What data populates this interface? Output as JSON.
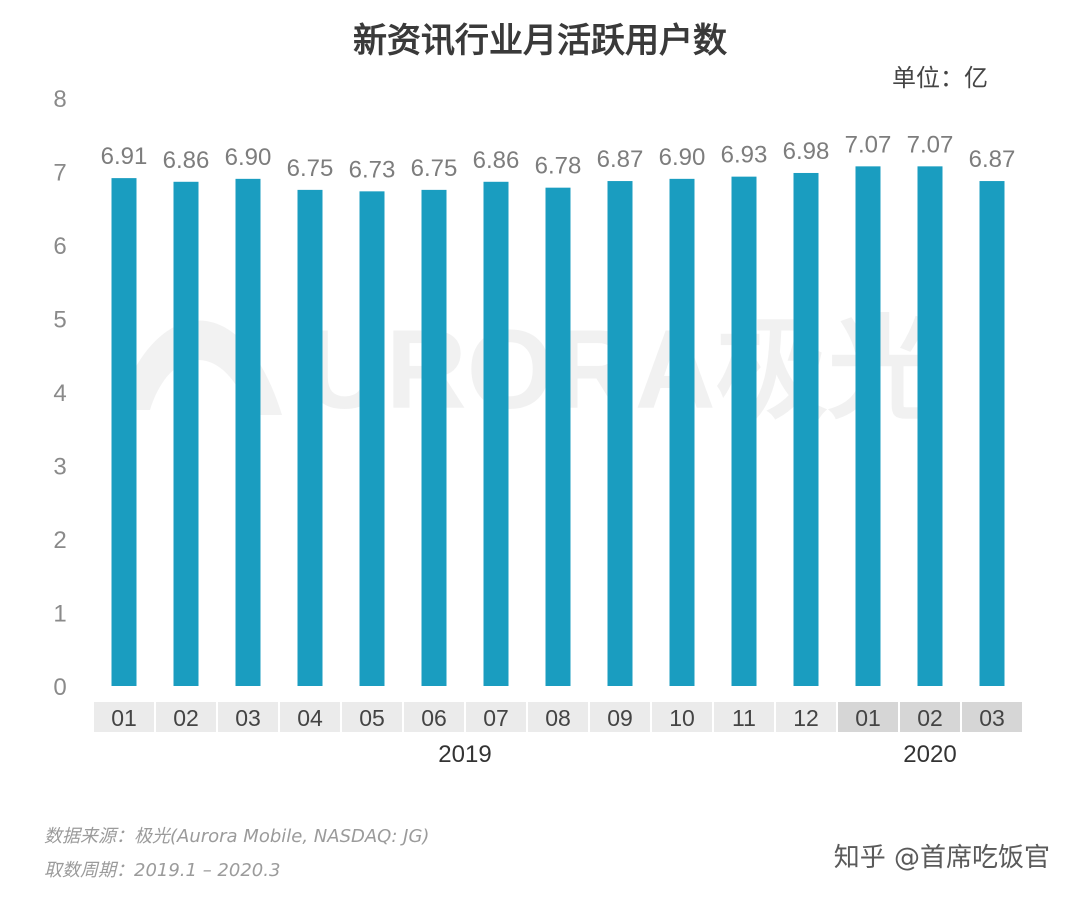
{
  "chart_data": {
    "type": "bar",
    "title": "新资讯行业月活跃用户数",
    "unit_label": "单位：亿",
    "categories": [
      "01",
      "02",
      "03",
      "04",
      "05",
      "06",
      "07",
      "08",
      "09",
      "10",
      "11",
      "12",
      "01",
      "02",
      "03"
    ],
    "years": [
      {
        "label": "2019",
        "start": 0,
        "end": 11
      },
      {
        "label": "2020",
        "start": 12,
        "end": 14
      }
    ],
    "values": [
      6.91,
      6.86,
      6.9,
      6.75,
      6.73,
      6.75,
      6.86,
      6.78,
      6.87,
      6.9,
      6.93,
      6.98,
      7.07,
      7.07,
      6.87
    ],
    "value_labels": [
      "6.91",
      "6.86",
      "6.90",
      "6.75",
      "6.73",
      "6.75",
      "6.86",
      "6.78",
      "6.87",
      "6.90",
      "6.93",
      "6.98",
      "7.07",
      "7.07",
      "6.87"
    ],
    "ylim": [
      0,
      8
    ],
    "yticks": [
      0,
      1,
      2,
      3,
      4,
      5,
      6,
      7,
      8
    ],
    "grid": false,
    "bar_color": "#1a9dc0",
    "category_band_colors": {
      "2019": "#ebebeb",
      "2020": "#d6d6d6"
    }
  },
  "watermark": {
    "text": "URORA极光"
  },
  "footer": {
    "source": "数据来源：极光(Aurora Mobile, NASDAQ: JG)",
    "period": "取数周期：2019.1 – 2020.3",
    "credit": "知乎 @首席吃饭官"
  }
}
